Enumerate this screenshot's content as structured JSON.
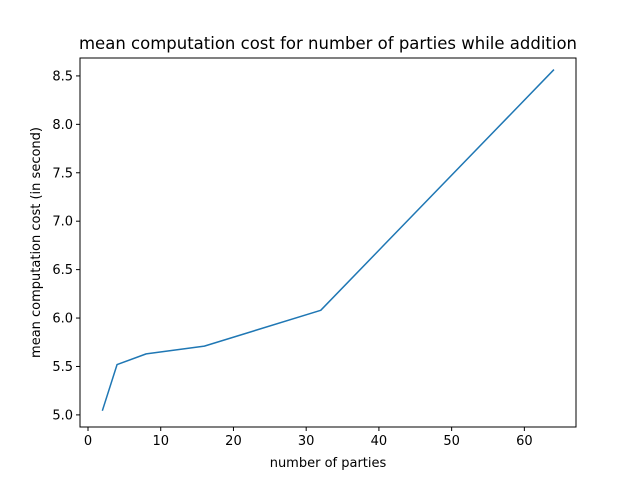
{
  "chart_data": {
    "type": "line",
    "title": "mean computation cost for number of parties while addition",
    "xlabel": "number of parties",
    "ylabel": "mean computation cost (in second)",
    "x": [
      2,
      4,
      8,
      16,
      32,
      64
    ],
    "series": [
      {
        "values": [
          5.05,
          5.52,
          5.63,
          5.71,
          6.08,
          8.56
        ],
        "color": "#1f77b4"
      }
    ],
    "xlim": [
      -1.1,
      67.1
    ],
    "ylim": [
      4.875,
      8.685
    ],
    "xticks": [
      0,
      10,
      20,
      30,
      40,
      50,
      60
    ],
    "xtick_labels": [
      "0",
      "10",
      "20",
      "30",
      "40",
      "50",
      "60"
    ],
    "yticks": [
      5.0,
      5.5,
      6.0,
      6.5,
      7.0,
      7.5,
      8.0,
      8.5
    ],
    "ytick_labels": [
      "5.0",
      "5.5",
      "6.0",
      "6.5",
      "7.0",
      "7.5",
      "8.0",
      "8.5"
    ],
    "grid": false,
    "legend": false
  }
}
